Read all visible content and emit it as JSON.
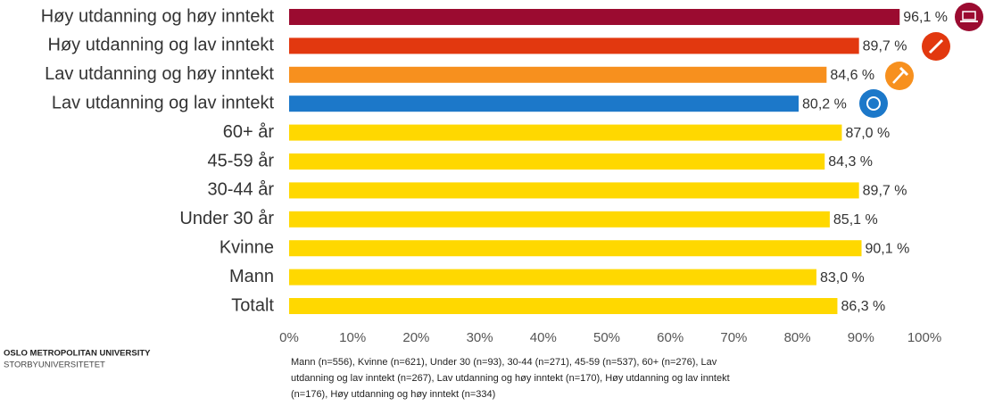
{
  "chart_data": {
    "type": "barh",
    "categories": [
      "Høy utdanning og høy inntekt",
      "Høy utdanning og lav inntekt",
      "Lav utdanning og høy inntekt",
      "Lav utdanning og lav inntekt",
      "60+ år",
      "45-59 år",
      "30-44 år",
      "Under 30 år",
      "Kvinne",
      "Mann",
      "Totalt"
    ],
    "values": [
      96.1,
      89.7,
      84.6,
      80.2,
      87.0,
      84.3,
      89.7,
      85.1,
      90.1,
      83.0,
      86.3
    ],
    "value_labels": [
      "96,1 %",
      "89,7 %",
      "84,6 %",
      "80,2 %",
      "87,0 %",
      "84,3 %",
      "89,7 %",
      "85,1 %",
      "90,1 %",
      "83,0 %",
      "86,3 %"
    ],
    "colors": [
      "#9b0b30",
      "#e2380f",
      "#f7901e",
      "#1c78c9",
      "#ffd800",
      "#ffd800",
      "#ffd800",
      "#ffd800",
      "#ffd800",
      "#ffd800",
      "#ffd800"
    ],
    "xlim": [
      0,
      100
    ],
    "xticks": [
      {
        "value": 0,
        "label": "0%"
      },
      {
        "value": 10,
        "label": "10%"
      },
      {
        "value": 20,
        "label": "20%"
      },
      {
        "value": 30,
        "label": "30%"
      },
      {
        "value": 40,
        "label": "40%"
      },
      {
        "value": 50,
        "label": "50%"
      },
      {
        "value": 60,
        "label": "60%"
      },
      {
        "value": 70,
        "label": "70%"
      },
      {
        "value": 80,
        "label": "80%"
      },
      {
        "value": 90,
        "label": "90%"
      },
      {
        "value": 100,
        "label": "100%"
      }
    ],
    "grid": false,
    "logo": [
      "OSLO METROPOLITAN UNIVERSITY",
      "STORBYUNIVERSITETET"
    ],
    "note_lines": [
      "Mann (n=556), Kvinne (n=621), Under 30 (n=93), 30-44 (n=271), 45-59 (n=537), 60+ (n=276), Lav",
      "utdanning og lav inntekt (n=267), Lav utdanning og høy inntekt (n=170), Høy utdanning og lav inntekt",
      "(n=176), Høy utdanning og høy inntekt (n=334)"
    ]
  }
}
